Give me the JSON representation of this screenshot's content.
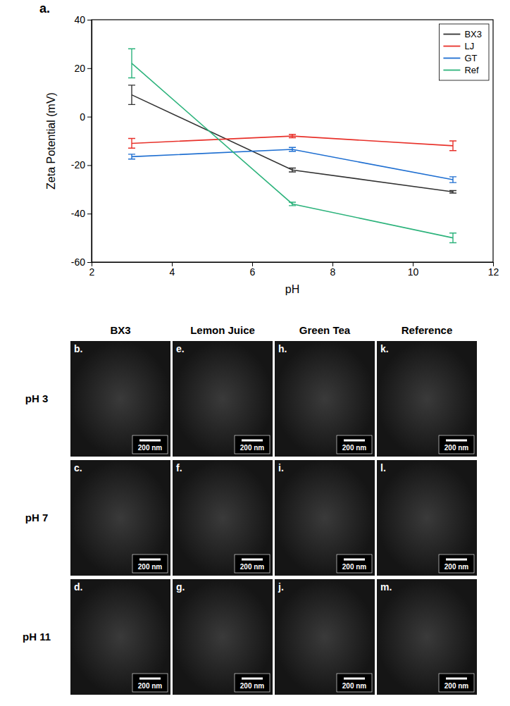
{
  "chart_data": {
    "type": "line",
    "x_label": "pH",
    "y_label": "Zeta Potential (mV)",
    "x": [
      3,
      7,
      11
    ],
    "series": [
      {
        "name": "BX3",
        "color": "#333333",
        "values": [
          9,
          -22,
          -31
        ],
        "errors": [
          4,
          0.8,
          0.5
        ]
      },
      {
        "name": "LJ",
        "color": "#e8312a",
        "values": [
          -11,
          -8,
          -12
        ],
        "errors": [
          2,
          0.7,
          2
        ]
      },
      {
        "name": "GT",
        "color": "#1f6fd1",
        "values": [
          -16.5,
          -13.5,
          -26
        ],
        "errors": [
          1,
          0.8,
          1.2
        ]
      },
      {
        "name": "Ref",
        "color": "#2db37c",
        "values": [
          22,
          -36,
          -50
        ],
        "errors": [
          6,
          0.7,
          2
        ]
      }
    ],
    "xlim": [
      2,
      12
    ],
    "xticks": [
      2,
      4,
      6,
      8,
      10,
      12
    ],
    "ylim": [
      -60,
      40
    ],
    "yticks": [
      -60,
      -40,
      -20,
      0,
      20,
      40
    ],
    "grid": false,
    "legend": "upper right"
  },
  "panel_label": "a.",
  "figure": {
    "columns": [
      "BX3",
      "Lemon Juice",
      "Green Tea",
      "Reference"
    ],
    "rows": [
      "pH 3",
      "pH 7",
      "pH 11"
    ],
    "panels": [
      [
        {
          "label": "b.",
          "scale_bar": "200 nm"
        },
        {
          "label": "e.",
          "scale_bar": "200 nm"
        },
        {
          "label": "h.",
          "scale_bar": "200 nm"
        },
        {
          "label": "k.",
          "scale_bar": "200 nm"
        }
      ],
      [
        {
          "label": "c.",
          "scale_bar": "200 nm"
        },
        {
          "label": "f.",
          "scale_bar": "200 nm"
        },
        {
          "label": "i.",
          "scale_bar": "200 nm"
        },
        {
          "label": "l.",
          "scale_bar": "200 nm"
        }
      ],
      [
        {
          "label": "d.",
          "scale_bar": "200 nm"
        },
        {
          "label": "g.",
          "scale_bar": "200 nm"
        },
        {
          "label": "j.",
          "scale_bar": "200 nm"
        },
        {
          "label": "m.",
          "scale_bar": "200 nm"
        }
      ]
    ]
  }
}
